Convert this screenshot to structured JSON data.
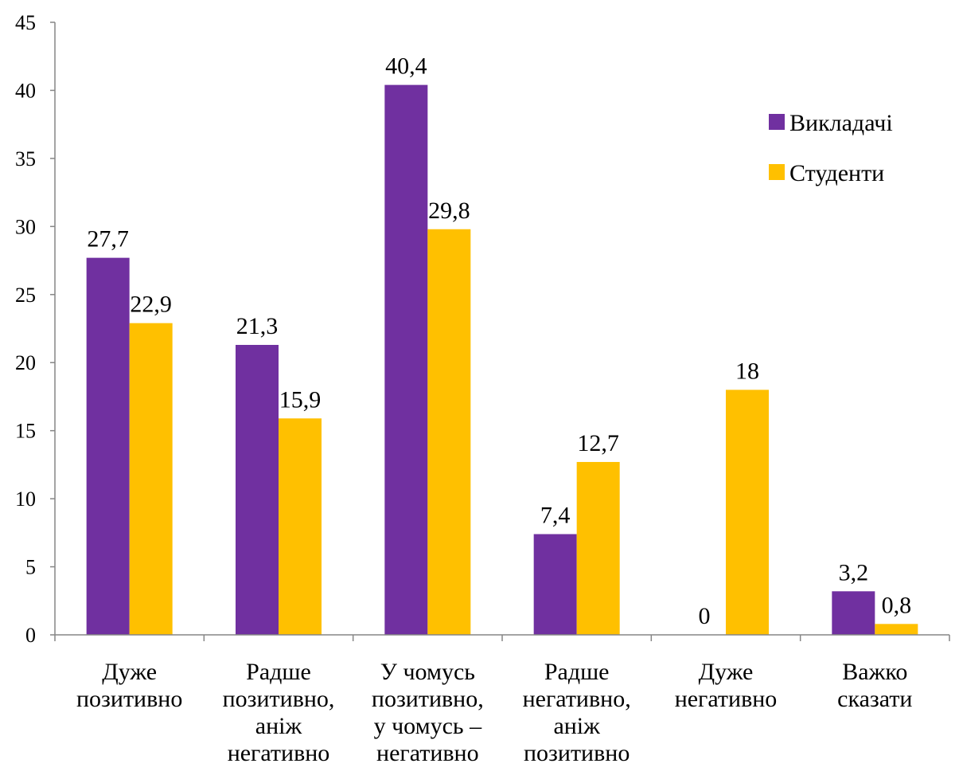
{
  "chart_data": {
    "type": "bar",
    "title": "",
    "xlabel": "",
    "ylabel": "",
    "ylim": [
      0,
      45
    ],
    "yticks": [
      "0",
      "5",
      "10",
      "15",
      "20",
      "25",
      "30",
      "35",
      "40",
      "45"
    ],
    "grid": false,
    "legend_position": "right",
    "categories": [
      [
        "Дуже",
        "позитивно"
      ],
      [
        "Радше",
        "позитивно,",
        "аніж",
        "негативно"
      ],
      [
        "У чомусь",
        "позитивно,",
        "у чомусь –",
        "негативно"
      ],
      [
        "Радше",
        "негативно,",
        "аніж",
        "позитивно"
      ],
      [
        "Дуже",
        "негативно"
      ],
      [
        "Важко",
        "сказати"
      ]
    ],
    "series": [
      {
        "name": "Викладачі",
        "color": "#7030A0",
        "values": [
          27.7,
          21.3,
          40.4,
          7.4,
          0,
          3.2
        ],
        "labels": [
          "27,7",
          "21,3",
          "40,4",
          "7,4",
          "0",
          "3,2"
        ]
      },
      {
        "name": "Студенти",
        "color": "#FFC000",
        "values": [
          22.9,
          15.9,
          29.8,
          12.7,
          18,
          0.8
        ],
        "labels": [
          "22,9",
          "15,9",
          "29,8",
          "12,7",
          "18",
          "0,8"
        ]
      }
    ]
  }
}
